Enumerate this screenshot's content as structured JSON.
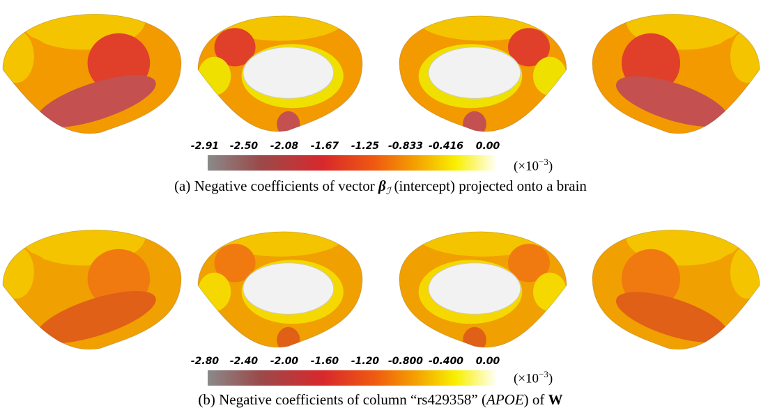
{
  "panels": [
    {
      "ticks": [
        "-2.91",
        "-2.50",
        "-2.08",
        "-1.67",
        "-1.25",
        "-0.833",
        "-0.416",
        "0.00"
      ],
      "multiplier": {
        "base": "(×10",
        "exponent": "−3",
        "close": ")"
      },
      "caption": {
        "label": "(a)",
        "before": "Negative coefficients of vector",
        "symbol": "β",
        "subscript": "ℐ",
        "after": "(intercept) projected onto a brain"
      }
    },
    {
      "ticks": [
        "-2.80",
        "-2.40",
        "-2.00",
        "-1.60",
        "-1.20",
        "-0.800",
        "-0.400",
        "0.00"
      ],
      "multiplier": {
        "base": "(×10",
        "exponent": "−3",
        "close": ")"
      },
      "caption": {
        "label": "(b)",
        "before": "Negative coefficients of column “rs429358” (",
        "italic": "APOE",
        "middle": ") of",
        "bold": "W"
      }
    }
  ]
}
